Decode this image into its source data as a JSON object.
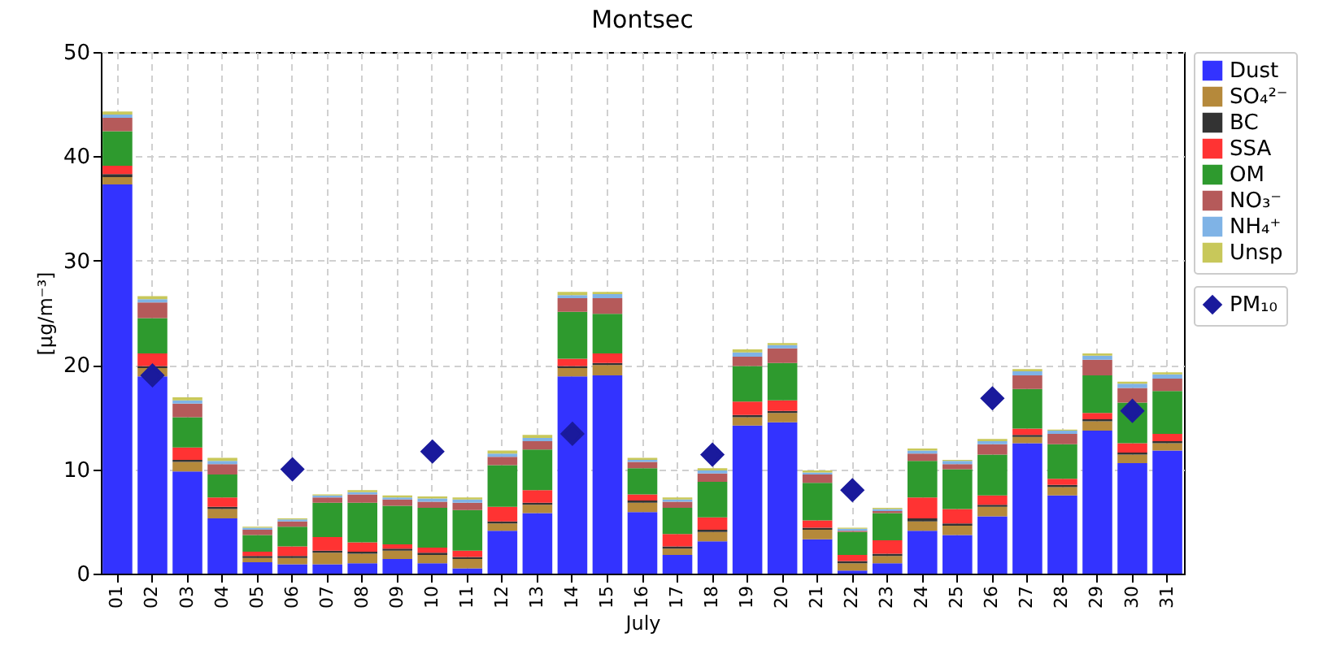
{
  "chart_data": {
    "type": "bar",
    "title": "Montsec",
    "xlabel": "July",
    "ylabel": "[μg/m⁻³]",
    "stacked": true,
    "grid": true,
    "legend": "right",
    "ylim": [
      0,
      50
    ],
    "yticks": [
      0,
      10,
      20,
      30,
      40,
      50
    ],
    "categories": [
      "01",
      "02",
      "03",
      "04",
      "05",
      "06",
      "07",
      "08",
      "09",
      "10",
      "11",
      "12",
      "13",
      "14",
      "15",
      "16",
      "17",
      "18",
      "19",
      "20",
      "21",
      "22",
      "23",
      "24",
      "25",
      "26",
      "27",
      "28",
      "29",
      "30",
      "31"
    ],
    "series": [
      {
        "name": "PM₁₀",
        "type": "scatter",
        "marker": "diamond",
        "color": "#1a1a9c",
        "values": [
          null,
          19,
          null,
          null,
          null,
          10,
          null,
          null,
          null,
          11.7,
          null,
          null,
          null,
          13.4,
          null,
          null,
          null,
          11.4,
          null,
          null,
          null,
          8,
          null,
          null,
          null,
          16.8,
          null,
          null,
          null,
          15.6,
          null
        ]
      },
      {
        "name": "Dust",
        "color": "#3333ff",
        "values": [
          37.3,
          18.9,
          9.8,
          5.3,
          1.1,
          0.9,
          0.9,
          1.0,
          1.4,
          1.0,
          0.5,
          4.1,
          5.8,
          18.9,
          19.0,
          5.9,
          1.8,
          3.1,
          14.2,
          14.5,
          3.3,
          0.3,
          1.0,
          4.1,
          3.7,
          5.5,
          12.5,
          7.5,
          13.7,
          10.6,
          11.8
        ]
      },
      {
        "name": "SO₄²⁻",
        "color": "#b5893b",
        "values": [
          0.7,
          0.8,
          0.9,
          0.9,
          0.4,
          0.6,
          1.1,
          0.9,
          0.8,
          0.8,
          0.9,
          0.7,
          0.8,
          0.8,
          1.0,
          0.9,
          0.6,
          0.9,
          0.8,
          0.9,
          0.9,
          0.7,
          0.7,
          0.9,
          0.9,
          0.9,
          0.6,
          0.8,
          0.9,
          0.8,
          0.7
        ]
      },
      {
        "name": "BC",
        "color": "#333333",
        "values": [
          0.3,
          0.2,
          0.2,
          0.2,
          0.2,
          0.2,
          0.2,
          0.2,
          0.2,
          0.2,
          0.2,
          0.2,
          0.2,
          0.2,
          0.2,
          0.2,
          0.2,
          0.2,
          0.2,
          0.2,
          0.2,
          0.2,
          0.2,
          0.3,
          0.2,
          0.2,
          0.2,
          0.2,
          0.2,
          0.2,
          0.2
        ]
      },
      {
        "name": "SSA",
        "color": "#ff3333",
        "values": [
          0.8,
          1.2,
          1.2,
          0.9,
          0.4,
          0.9,
          1.3,
          0.9,
          0.4,
          0.5,
          0.6,
          1.4,
          1.2,
          0.7,
          0.9,
          0.6,
          1.2,
          1.2,
          1.3,
          1.0,
          0.7,
          0.6,
          1.3,
          2.0,
          1.4,
          0.9,
          0.6,
          0.6,
          0.6,
          0.9,
          0.7
        ]
      },
      {
        "name": "OM",
        "color": "#2e9a2e",
        "values": [
          3.3,
          3.4,
          2.9,
          2.2,
          1.6,
          1.9,
          3.3,
          3.8,
          3.7,
          3.8,
          3.9,
          4.0,
          3.9,
          4.5,
          3.8,
          2.5,
          2.5,
          3.4,
          3.4,
          3.6,
          3.6,
          2.2,
          2.6,
          3.5,
          3.8,
          3.9,
          3.8,
          3.3,
          3.6,
          3.9,
          4.1
        ]
      },
      {
        "name": "NO₃⁻",
        "color": "#b55a5a",
        "values": [
          1.3,
          1.5,
          1.3,
          1.0,
          0.5,
          0.5,
          0.5,
          0.8,
          0.6,
          0.6,
          0.7,
          0.8,
          0.8,
          1.3,
          1.5,
          0.6,
          0.6,
          0.8,
          0.9,
          1.4,
          0.8,
          0.1,
          0.2,
          0.7,
          0.5,
          1.0,
          1.3,
          1.0,
          1.5,
          1.4,
          1.2
        ]
      },
      {
        "name": "NH₄⁺",
        "color": "#7fb3e6",
        "values": [
          0.3,
          0.3,
          0.3,
          0.3,
          0.2,
          0.2,
          0.2,
          0.2,
          0.2,
          0.3,
          0.3,
          0.3,
          0.3,
          0.3,
          0.4,
          0.2,
          0.2,
          0.3,
          0.4,
          0.3,
          0.2,
          0.2,
          0.2,
          0.3,
          0.3,
          0.3,
          0.4,
          0.3,
          0.4,
          0.4,
          0.4
        ]
      },
      {
        "name": "Unsp",
        "color": "#c8c85a",
        "values": [
          0.3,
          0.3,
          0.3,
          0.3,
          0.1,
          0.1,
          0.1,
          0.2,
          0.2,
          0.2,
          0.2,
          0.3,
          0.3,
          0.3,
          0.2,
          0.2,
          0.2,
          0.2,
          0.3,
          0.2,
          0.2,
          0.1,
          0.1,
          0.2,
          0.1,
          0.2,
          0.2,
          0.1,
          0.2,
          0.2,
          0.2
        ]
      }
    ]
  }
}
